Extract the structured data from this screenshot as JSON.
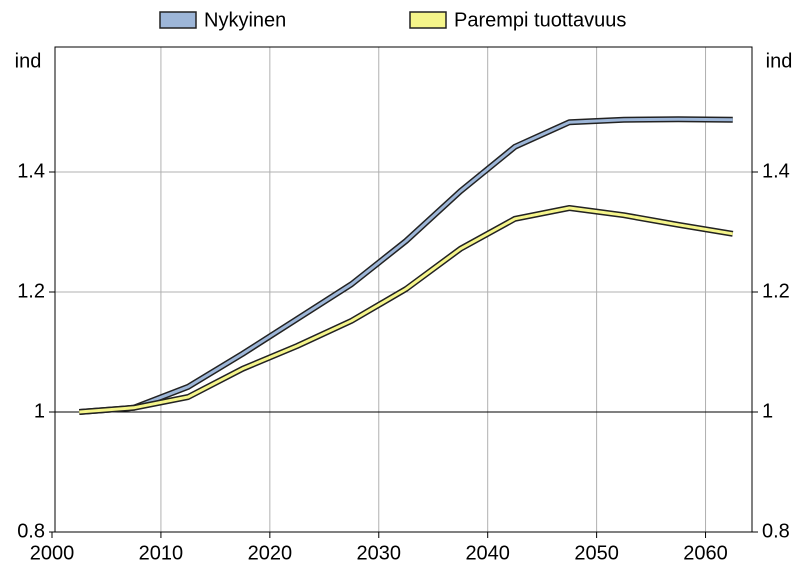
{
  "chart_data": {
    "type": "line",
    "y_label": "ind",
    "y2_label": "ind",
    "x": [
      2002.5,
      2007.5,
      2012.5,
      2017.5,
      2022.5,
      2027.5,
      2032.5,
      2037.5,
      2042.5,
      2047.5,
      2052.5,
      2057.5,
      2062.5
    ],
    "series": [
      {
        "name": "Nykyinen",
        "color": "#9db6d8",
        "values": [
          1.0,
          1.007,
          1.042,
          1.097,
          1.155,
          1.213,
          1.285,
          1.368,
          1.442,
          1.483,
          1.487,
          1.488,
          1.487
        ]
      },
      {
        "name": "Parempi tuottavuus",
        "color": "#f5f58a",
        "values": [
          1.0,
          1.007,
          1.025,
          1.072,
          1.11,
          1.152,
          1.205,
          1.272,
          1.322,
          1.34,
          1.328,
          1.312,
          1.297
        ]
      }
    ],
    "xlim": [
      2000,
      2065
    ],
    "xticks": [
      2000,
      2010,
      2020,
      2030,
      2040,
      2050,
      2060
    ],
    "ylim": [
      0.8,
      1.6
    ],
    "yticks": [
      0.8,
      1,
      1.2,
      1.4
    ],
    "y2lim": [
      0.8,
      1.6
    ],
    "y2ticks": [
      0.8,
      1,
      1.2,
      1.4
    ],
    "hline": 1,
    "grid": true,
    "legend": "top"
  }
}
